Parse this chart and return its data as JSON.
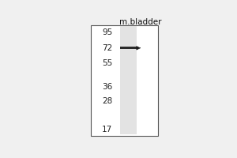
{
  "title": "m.bladder",
  "marker_labels": [
    95,
    72,
    55,
    36,
    28,
    17
  ],
  "band_mw": 72,
  "bg_color": "#f0f0f0",
  "panel_bg": "#ffffff",
  "lane_color": "#d8d8d8",
  "band_color": "#2a2a2a",
  "arrow_color": "#1a1a1a",
  "border_color": "#555555",
  "title_fontsize": 7.5,
  "label_fontsize": 7.5,
  "fig_width": 3.0,
  "fig_height": 2.0,
  "dpi": 100
}
